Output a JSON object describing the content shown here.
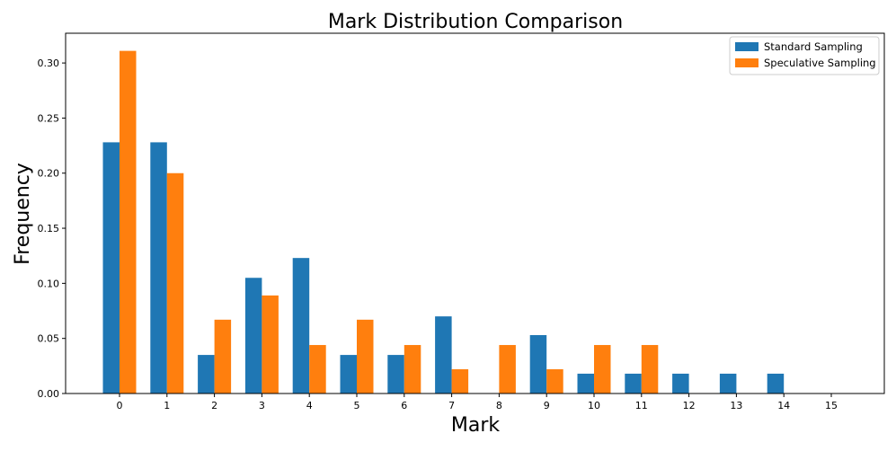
{
  "chart_data": {
    "type": "bar",
    "title": "Mark Distribution Comparison",
    "xlabel": "Mark",
    "ylabel": "Frequency",
    "categories": [
      "0",
      "1",
      "2",
      "3",
      "4",
      "5",
      "6",
      "7",
      "8",
      "9",
      "10",
      "11",
      "12",
      "13",
      "14",
      "15"
    ],
    "ylim": [
      0,
      0.327
    ],
    "yticks": [
      "0.00",
      "0.05",
      "0.10",
      "0.15",
      "0.20",
      "0.25",
      "0.30"
    ],
    "legend_position": "top-right",
    "grid": false,
    "series": [
      {
        "name": "Standard Sampling",
        "color": "#1f77b4",
        "values": [
          0.228,
          0.228,
          0.035,
          0.105,
          0.123,
          0.035,
          0.035,
          0.07,
          0.0,
          0.053,
          0.018,
          0.018,
          0.018,
          0.018,
          0.018,
          0.0
        ]
      },
      {
        "name": "Speculative Sampling",
        "color": "#ff7f0e",
        "values": [
          0.311,
          0.2,
          0.067,
          0.089,
          0.044,
          0.067,
          0.044,
          0.022,
          0.044,
          0.022,
          0.044,
          0.044,
          0.0,
          0.0,
          0.0,
          0.0
        ]
      }
    ]
  }
}
